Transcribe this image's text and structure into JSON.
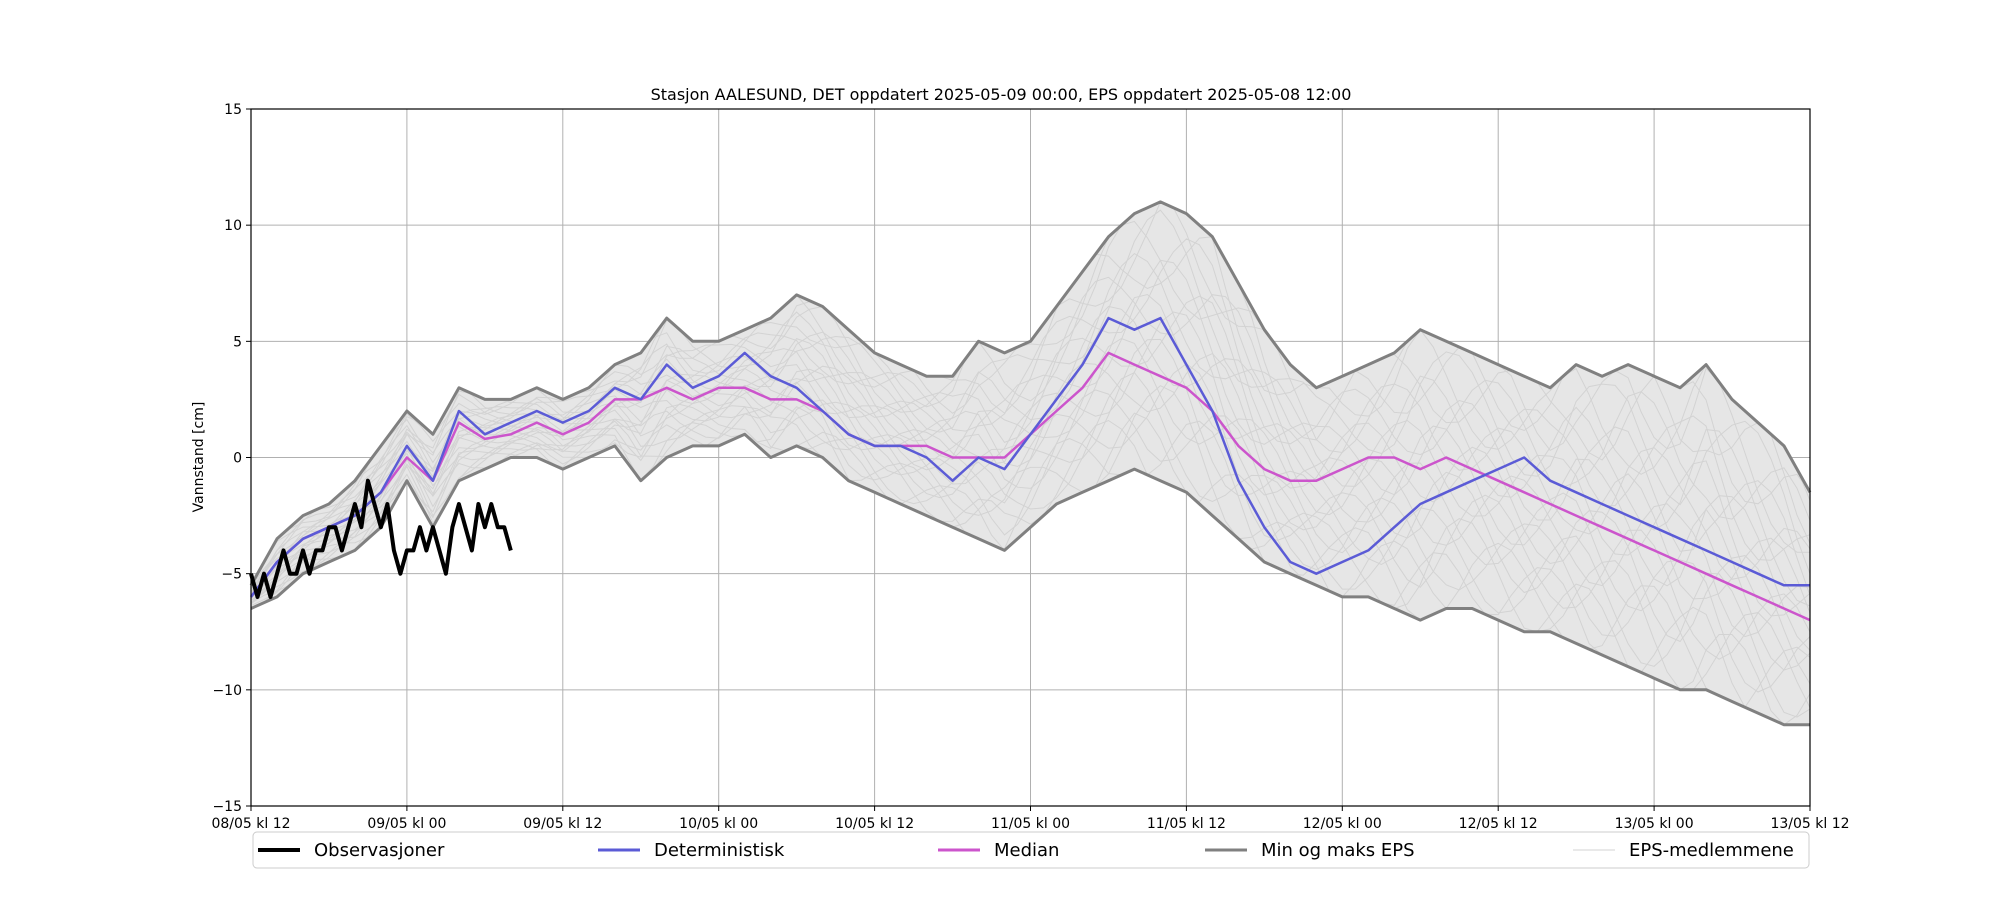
{
  "chart_data": {
    "type": "line",
    "title": "Stasjon AALESUND, DET oppdatert 2025-05-09 00:00, EPS oppdatert 2025-05-08 12:00",
    "ylabel": "Vannstand [cm]",
    "xlabel": "",
    "ylim": [
      -15,
      15
    ],
    "yticks": [
      -15,
      -10,
      -5,
      0,
      5,
      10,
      15
    ],
    "ytick_labels": [
      "−15",
      "−10",
      "−5",
      "0",
      "5",
      "10",
      "15"
    ],
    "x_unit": "hours since 08/05 kl 12",
    "xlim": [
      0,
      120
    ],
    "xticks": [
      0,
      12,
      24,
      36,
      48,
      60,
      72,
      84,
      96,
      108,
      120
    ],
    "xtick_labels": [
      "08/05 kl 12",
      "09/05 kl 00",
      "09/05 kl 12",
      "10/05 kl 00",
      "10/05 kl 12",
      "11/05 kl 00",
      "11/05 kl 12",
      "12/05 kl 00",
      "12/05 kl 12",
      "13/05 kl 00",
      "13/05 kl 12"
    ],
    "grid": true,
    "legend_position": "bottom",
    "series": [
      {
        "name": "Observasjoner",
        "color": "#000000",
        "x": [
          0,
          0.5,
          1,
          1.5,
          2,
          2.5,
          3,
          3.5,
          4,
          4.5,
          5,
          5.5,
          6,
          6.5,
          7,
          7.5,
          8,
          8.5,
          9,
          9.5,
          10,
          10.5,
          11,
          11.5,
          12,
          12.5,
          13,
          13.5,
          14,
          14.5,
          15,
          15.5,
          16,
          16.5,
          17,
          17.5,
          18,
          18.5,
          19,
          19.5,
          20
        ],
        "values": [
          -5,
          -6,
          -5,
          -6,
          -5,
          -4,
          -5,
          -5,
          -4,
          -5,
          -4,
          -4,
          -3,
          -3,
          -4,
          -3,
          -2,
          -3,
          -1,
          -2,
          -3,
          -2,
          -4,
          -5,
          -4,
          -4,
          -3,
          -4,
          -3,
          -4,
          -5,
          -3,
          -2,
          -3,
          -4,
          -2,
          -3,
          -2,
          -3,
          -3,
          -4
        ]
      },
      {
        "name": "Deterministisk",
        "color": "#5b5bd6",
        "x": [
          0,
          2,
          4,
          6,
          8,
          10,
          12,
          14,
          16,
          18,
          20,
          22,
          24,
          26,
          28,
          30,
          32,
          34,
          36,
          38,
          40,
          42,
          44,
          46,
          48,
          50,
          52,
          54,
          56,
          58,
          60,
          62,
          64,
          66,
          68,
          70,
          72,
          74,
          76,
          78,
          80,
          82,
          84,
          86,
          88,
          90,
          92,
          94,
          96,
          98,
          100,
          102,
          104,
          106,
          108,
          110,
          112,
          114,
          116,
          118,
          120
        ],
        "values": [
          -6,
          -4.5,
          -3.5,
          -3,
          -2.5,
          -1.5,
          0.5,
          -1,
          2,
          1,
          1.5,
          2,
          1.5,
          2,
          3,
          2.5,
          4,
          3,
          3.5,
          4.5,
          3.5,
          3,
          2,
          1,
          0.5,
          0.5,
          0,
          -1,
          0,
          -0.5,
          1,
          2.5,
          4,
          6,
          5.5,
          6,
          4,
          2,
          -1,
          -3,
          -4.5,
          -5,
          -4.5,
          -4,
          -3,
          -2,
          -1.5,
          -1,
          -0.5,
          0,
          -1,
          -1.5,
          -2,
          -2.5,
          -3,
          -3.5,
          -4,
          -4.5,
          -5,
          -5.5,
          -5.5
        ]
      },
      {
        "name": "Median",
        "color": "#cc55cc",
        "x": [
          0,
          2,
          4,
          6,
          8,
          10,
          12,
          14,
          16,
          18,
          20,
          22,
          24,
          26,
          28,
          30,
          32,
          34,
          36,
          38,
          40,
          42,
          44,
          46,
          48,
          50,
          52,
          54,
          56,
          58,
          60,
          62,
          64,
          66,
          68,
          70,
          72,
          74,
          76,
          78,
          80,
          82,
          84,
          86,
          88,
          90,
          92,
          94,
          96,
          98,
          100,
          102,
          104,
          106,
          108,
          110,
          112,
          114,
          116,
          118,
          120
        ],
        "values": [
          -6,
          -4.5,
          -3.5,
          -3,
          -2.5,
          -1.5,
          0,
          -1,
          1.5,
          0.8,
          1,
          1.5,
          1,
          1.5,
          2.5,
          2.5,
          3,
          2.5,
          3,
          3,
          2.5,
          2.5,
          2,
          1,
          0.5,
          0.5,
          0.5,
          0,
          0,
          0,
          1,
          2,
          3,
          4.5,
          4,
          3.5,
          3,
          2,
          0.5,
          -0.5,
          -1,
          -1,
          -0.5,
          0,
          0,
          -0.5,
          0,
          -0.5,
          -1,
          -1.5,
          -2,
          -2.5,
          -3,
          -3.5,
          -4,
          -4.5,
          -5,
          -5.5,
          -6,
          -6.5,
          -7
        ]
      },
      {
        "name": "Min og maks EPS",
        "color": "#808080",
        "x": [
          0,
          2,
          4,
          6,
          8,
          10,
          12,
          14,
          16,
          18,
          20,
          22,
          24,
          26,
          28,
          30,
          32,
          34,
          36,
          38,
          40,
          42,
          44,
          46,
          48,
          50,
          52,
          54,
          56,
          58,
          60,
          62,
          64,
          66,
          68,
          70,
          72,
          74,
          76,
          78,
          80,
          82,
          84,
          86,
          88,
          90,
          92,
          94,
          96,
          98,
          100,
          102,
          104,
          106,
          108,
          110,
          112,
          114,
          116,
          118,
          120
        ],
        "values_max": [
          -5.5,
          -3.5,
          -2.5,
          -2,
          -1,
          0.5,
          2,
          1,
          3,
          2.5,
          2.5,
          3,
          2.5,
          3,
          4,
          4.5,
          6,
          5,
          5,
          5.5,
          6,
          7,
          6.5,
          5.5,
          4.5,
          4,
          3.5,
          3.5,
          5,
          4.5,
          5,
          6.5,
          8,
          9.5,
          10.5,
          11,
          10.5,
          9.5,
          7.5,
          5.5,
          4,
          3,
          3.5,
          4,
          4.5,
          5.5,
          5,
          4.5,
          4,
          3.5,
          3,
          4,
          3.5,
          4,
          3.5,
          3,
          4,
          2.5,
          1.5,
          0.5,
          -1.5
        ],
        "values_min": [
          -6.5,
          -6,
          -5,
          -4.5,
          -4,
          -3,
          -1,
          -3,
          -1,
          -0.5,
          0,
          0,
          -0.5,
          0,
          0.5,
          -1,
          0,
          0.5,
          0.5,
          1,
          0,
          0.5,
          0,
          -1,
          -1.5,
          -2,
          -2.5,
          -3,
          -3.5,
          -4,
          -3,
          -2,
          -1.5,
          -1,
          -0.5,
          -1,
          -1.5,
          -2.5,
          -3.5,
          -4.5,
          -5,
          -5.5,
          -6,
          -6,
          -6.5,
          -7,
          -6.5,
          -6.5,
          -7,
          -7.5,
          -7.5,
          -8,
          -8.5,
          -9,
          -9.5,
          -10,
          -10,
          -10.5,
          -11,
          -11.5,
          -11.5
        ]
      },
      {
        "name": "EPS-medlemmene",
        "color": "#d3d3d3"
      }
    ]
  }
}
